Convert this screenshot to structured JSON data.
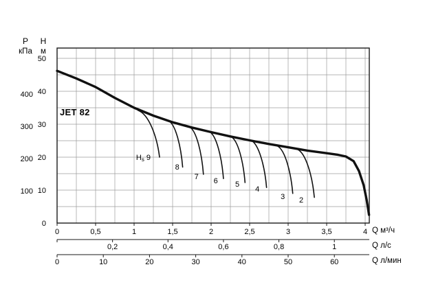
{
  "title": "JET 82",
  "header_labels": {
    "pressure_symbol": "P",
    "pressure_unit": "кПа",
    "head_symbol": "H",
    "head_unit": "м"
  },
  "flow_axes": {
    "m3h": {
      "label": "Q м³/ч"
    },
    "ls": {
      "label": "Q л/с"
    },
    "lmin": {
      "label": "Q л/мин"
    }
  },
  "chart_data": {
    "type": "line",
    "title": "JET 82",
    "ylabel_left": "P (кПа)",
    "ylabel_right_inner": "H (м)",
    "xlabel": "Q (м³/ч, л/с, л/мин)",
    "xlim": [
      0,
      4.05
    ],
    "ylim_m": [
      0,
      53
    ],
    "grid": {
      "x_step_m3h": 0.25,
      "y_step_m": 5
    },
    "pressure_ticks_kpa": [
      400,
      300,
      200,
      100
    ],
    "head_ticks_m": [
      50,
      40,
      30,
      20,
      10,
      0
    ],
    "flow_ticks_m3h": [
      0,
      0.5,
      1,
      1.5,
      2,
      2.5,
      3,
      3.5,
      4
    ],
    "flow_tick_labels_m3h": [
      "0",
      "0,5",
      "1",
      "1,5",
      "2",
      "2,5",
      "3",
      "3,5",
      "4"
    ],
    "flow_ticks_ls": [
      0.2,
      0.4,
      0.6,
      0.8,
      1
    ],
    "flow_tick_labels_ls": [
      "0,2",
      "0,4",
      "0,6",
      "0,8",
      "1"
    ],
    "flow_ticks_lmin": [
      0,
      10,
      20,
      30,
      40,
      50,
      60
    ],
    "flow_tick_labels_lmin": [
      "0",
      "10",
      "20",
      "30",
      "40",
      "50",
      "60"
    ],
    "conversion": {
      "ls_to_m3h": 3.6,
      "lmin_to_m3h": 0.06
    },
    "main_curve": {
      "name": "head-vs-flow",
      "points_q_m3h_h_m": [
        [
          0,
          46.2
        ],
        [
          0.25,
          43.9
        ],
        [
          0.5,
          41.3
        ],
        [
          0.75,
          38.0
        ],
        [
          1.0,
          35.0
        ],
        [
          1.25,
          32.6
        ],
        [
          1.5,
          30.6
        ],
        [
          1.75,
          29.0
        ],
        [
          2.0,
          27.6
        ],
        [
          2.25,
          26.3
        ],
        [
          2.5,
          25.1
        ],
        [
          2.75,
          24.0
        ],
        [
          3.0,
          23.0
        ],
        [
          3.25,
          22.0
        ],
        [
          3.5,
          21.2
        ],
        [
          3.65,
          20.7
        ],
        [
          3.75,
          20.2
        ],
        [
          3.85,
          18.8
        ],
        [
          3.92,
          15.8
        ],
        [
          3.98,
          11.5
        ],
        [
          4.02,
          7.0
        ],
        [
          4.05,
          2.5
        ]
      ]
    },
    "hs_curves": {
      "prefix": "Hs",
      "curves": [
        {
          "hs": 9,
          "label": "9",
          "with_prefix": true,
          "branch": [
            1.05,
            34.2
          ],
          "end": [
            1.33,
            20.0
          ],
          "label_pos": [
            1.12,
            20.0
          ]
        },
        {
          "hs": 8,
          "label": "8",
          "with_prefix": false,
          "branch": [
            1.45,
            31.0
          ],
          "end": [
            1.63,
            17.0
          ],
          "label_pos": [
            1.56,
            17.1
          ]
        },
        {
          "hs": 7,
          "label": "7",
          "with_prefix": false,
          "branch": [
            1.72,
            29.2
          ],
          "end": [
            1.9,
            14.8
          ],
          "label_pos": [
            1.81,
            14.2
          ]
        },
        {
          "hs": 6,
          "label": "6",
          "with_prefix": false,
          "branch": [
            1.98,
            27.7
          ],
          "end": [
            2.16,
            13.5
          ],
          "label_pos": [
            2.06,
            12.9
          ]
        },
        {
          "hs": 5,
          "label": "5",
          "with_prefix": false,
          "branch": [
            2.26,
            26.2
          ],
          "end": [
            2.44,
            12.3
          ],
          "label_pos": [
            2.34,
            11.9
          ]
        },
        {
          "hs": 4,
          "label": "4",
          "with_prefix": false,
          "branch": [
            2.52,
            25.1
          ],
          "end": [
            2.72,
            10.8
          ],
          "label_pos": [
            2.6,
            10.4
          ]
        },
        {
          "hs": 3,
          "label": "3",
          "with_prefix": false,
          "branch": [
            2.86,
            23.4
          ],
          "end": [
            3.06,
            9.0
          ],
          "label_pos": [
            2.93,
            8.1
          ]
        },
        {
          "hs": 2,
          "label": "2",
          "with_prefix": false,
          "branch": [
            3.12,
            22.4
          ],
          "end": [
            3.34,
            7.8
          ],
          "label_pos": [
            3.17,
            7.1
          ]
        }
      ]
    }
  }
}
